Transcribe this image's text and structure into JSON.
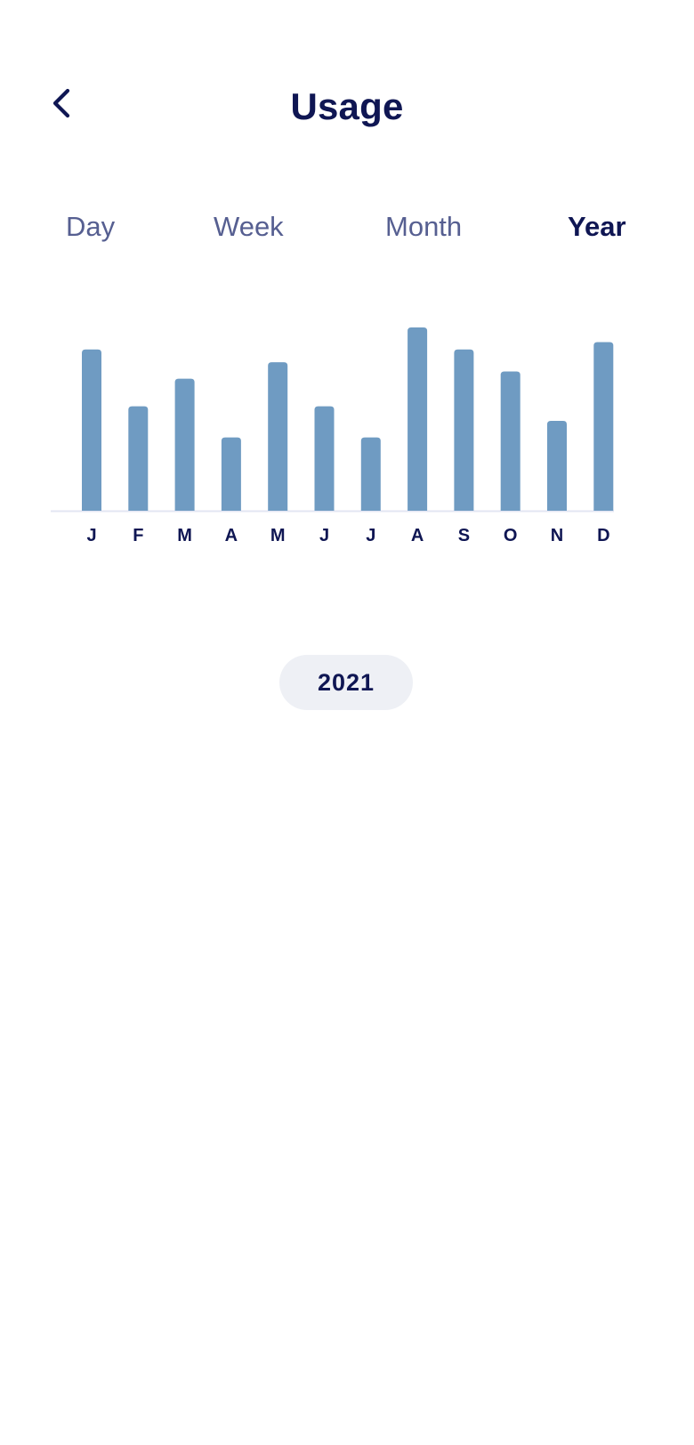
{
  "header": {
    "title": "Usage",
    "back_icon": "chevron-left-icon"
  },
  "tabs": [
    {
      "label": "Day",
      "active": false
    },
    {
      "label": "Week",
      "active": false
    },
    {
      "label": "Month",
      "active": false
    },
    {
      "label": "Year",
      "active": true
    }
  ],
  "year_selector": {
    "label": "2021"
  },
  "colors": {
    "bar": "#6f9bc2",
    "baseline": "#e3e6f3",
    "text_dark": "#0f1653",
    "text_muted": "#565f91",
    "pill_bg": "#eef0f5"
  },
  "chart_data": {
    "type": "bar",
    "categories": [
      "J",
      "F",
      "M",
      "A",
      "M",
      "J",
      "J",
      "A",
      "S",
      "O",
      "N",
      "D"
    ],
    "values": [
      88,
      57,
      72,
      40,
      81,
      57,
      40,
      100,
      88,
      76,
      49,
      92
    ],
    "ylim": [
      0,
      100
    ],
    "grid": false,
    "xlabel": "",
    "ylabel": ""
  }
}
